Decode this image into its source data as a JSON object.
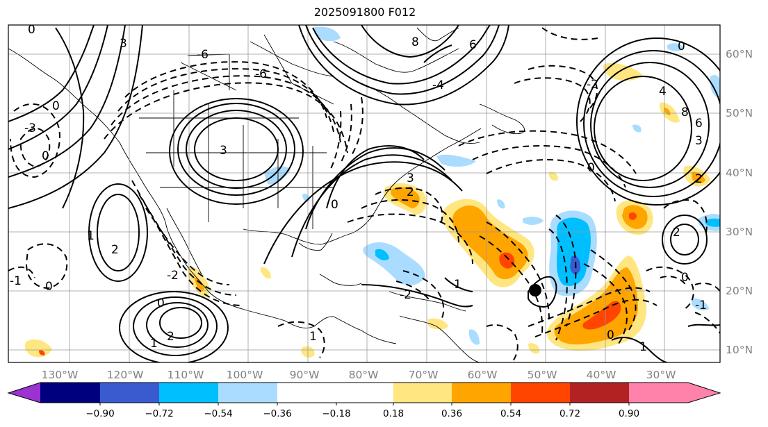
{
  "title": "2025091800 F012",
  "map": {
    "longitude_labels": [
      "130°W",
      "120°W",
      "110°W",
      "100°W",
      "90°W",
      "80°W",
      "70°W",
      "60°W",
      "50°W",
      "40°W",
      "30°W"
    ],
    "latitude_labels": [
      "60°N",
      "50°N",
      "40°N",
      "30°N",
      "20°N",
      "10°N"
    ],
    "contour_labels": [
      "0",
      "2",
      "4",
      "-2",
      "-3",
      "1",
      "-1",
      "3",
      "6",
      "8",
      "-6",
      "-4"
    ],
    "storm_marker": "filled black circle"
  },
  "colorbar": {
    "ticks": [
      "−0.90",
      "−0.72",
      "−0.54",
      "−0.36",
      "−0.18",
      "0.18",
      "0.36",
      "0.54",
      "0.72",
      "0.90"
    ],
    "colors": [
      "#9b32d2",
      "#00007f",
      "#3a5bd0",
      "#00bfff",
      "#aadcff",
      "#ffffff",
      "#ffe680",
      "#ffa500",
      "#ff4500",
      "#b22222",
      "#ff82aa"
    ]
  }
}
